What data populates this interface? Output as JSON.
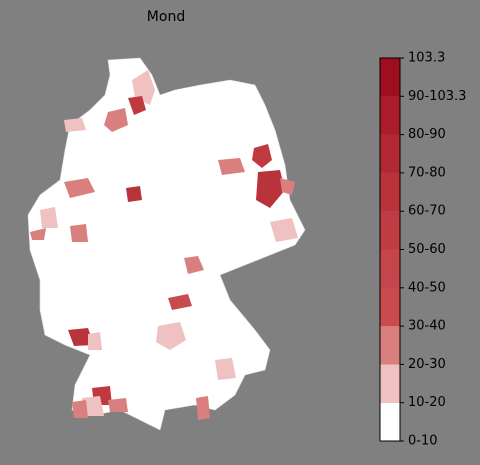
{
  "title": "Mond",
  "colorbar": {
    "labels": [
      "0-10",
      "10-20",
      "20-30",
      "30-40",
      "40-50",
      "50-60",
      "60-70",
      "70-80",
      "80-90",
      "90-103.3",
      "103.3"
    ],
    "colors": [
      "#ffffff",
      "#efc1c1",
      "#d9807f",
      "#c94b4e",
      "#c4454a",
      "#bf3c42",
      "#b9333a",
      "#b22832",
      "#aa1c29",
      "#9f0e1f"
    ]
  }
}
